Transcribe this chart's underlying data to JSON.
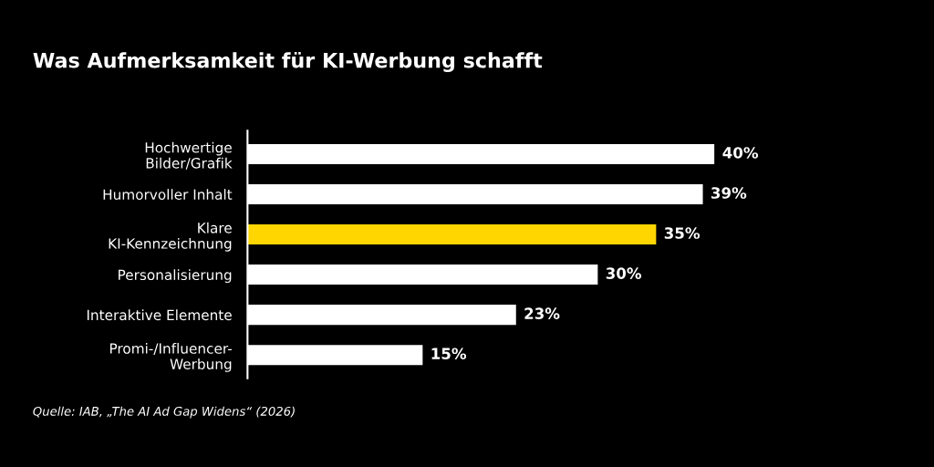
{
  "chart_data": {
    "type": "bar",
    "orientation": "horizontal",
    "title": "Was Aufmerksamkeit für KI-Werbung schafft",
    "categories": [
      "Hochwertige\nBilder/Grafik",
      "Humorvoller Inhalt",
      "Klare\nKI-Kennzeichnung",
      "Personalisierung",
      "Interaktive Elemente",
      "Promi-/Influencer-\nWerbung"
    ],
    "values": [
      40,
      39,
      35,
      30,
      23,
      15
    ],
    "colors": [
      "#ffffff",
      "#ffffff",
      "#ffd600",
      "#ffffff",
      "#ffffff",
      "#ffffff"
    ],
    "value_labels": [
      "40%",
      "39%",
      "35%",
      "30%",
      "23%",
      "15%"
    ],
    "annotations": [
      "Quelle: IAB, „The AI Ad Gap Widens“ (2026)"
    ],
    "grid": false,
    "legend": false
  }
}
